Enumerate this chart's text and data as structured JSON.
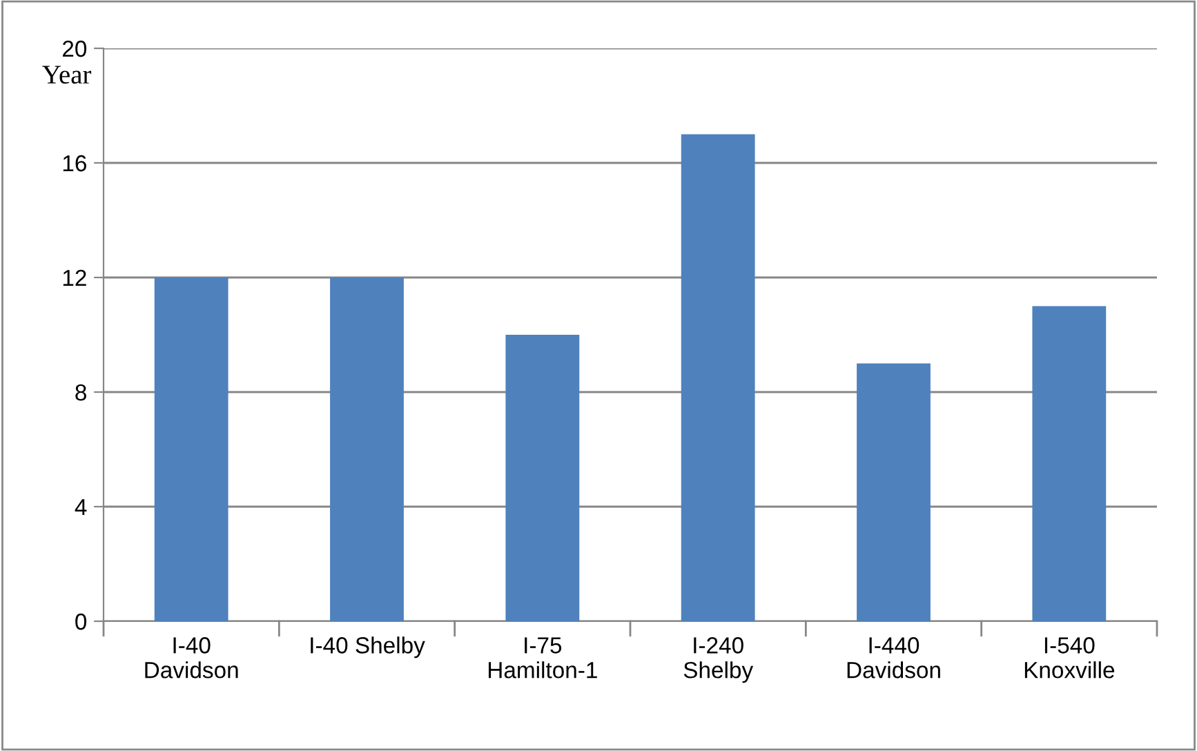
{
  "chart_data": {
    "type": "bar",
    "ylabel": "Year",
    "categories": [
      "I-40\nDavidson",
      "I-40 Shelby",
      "I-75\nHamilton-1",
      "I-240\nShelby",
      "I-440\nDavidson",
      "I-540\nKnoxville"
    ],
    "values": [
      12,
      12,
      10,
      17,
      9,
      11
    ],
    "color": "#4f81bd",
    "ylim": [
      0,
      20
    ],
    "yticks": [
      0,
      4,
      8,
      12,
      16,
      20
    ],
    "grid": "y",
    "legend": false
  }
}
